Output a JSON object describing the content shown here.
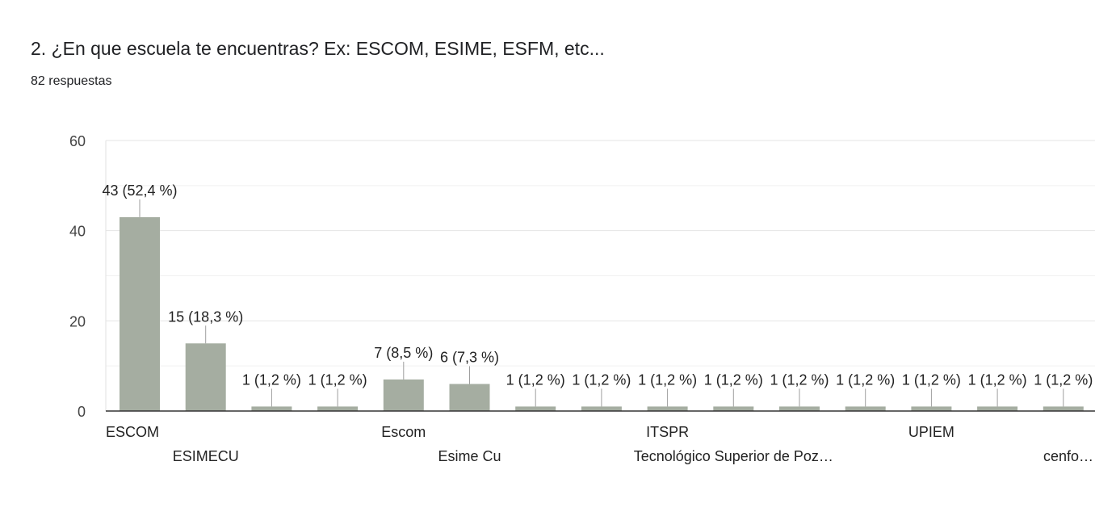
{
  "question": {
    "title": "2. ¿En que escuela te encuentras? Ex: ESCOM, ESIME, ESFM, etc...",
    "responses": "82 respuestas"
  },
  "chart_data": {
    "type": "bar",
    "categories": [
      "ESCOM",
      "ESIMECU",
      "",
      "",
      "Escom",
      "Esime Cu",
      "",
      "",
      "ITSPR",
      "Tecnológico Superior de Poz…",
      "",
      "",
      "UPIEM",
      "",
      "cenfo…"
    ],
    "values": [
      43,
      15,
      1,
      1,
      7,
      6,
      1,
      1,
      1,
      1,
      1,
      1,
      1,
      1,
      1
    ],
    "data_labels": [
      "43 (52,4 %)",
      "15 (18,3 %)",
      "1 (1,2 %)",
      "1 (1,2 %)",
      "7 (8,5 %)",
      "6 (7,3 %)",
      "1 (1,2 %)",
      "1 (1,2 %)",
      "1 (1,2 %)",
      "1 (1,2 %)",
      "1 (1,2 %)",
      "1 (1,2 %)",
      "1 (1,2 %)",
      "1 (1,2 %)",
      "1 (1,2 %)"
    ],
    "y_ticks": [
      0,
      20,
      40,
      60
    ],
    "ylim": [
      0,
      60
    ],
    "title": "",
    "xlabel": "",
    "ylabel": "",
    "grid": true,
    "bar_color": "#a5ada1",
    "grid_color": "#e5e5e5",
    "axis_color": "#333333"
  }
}
